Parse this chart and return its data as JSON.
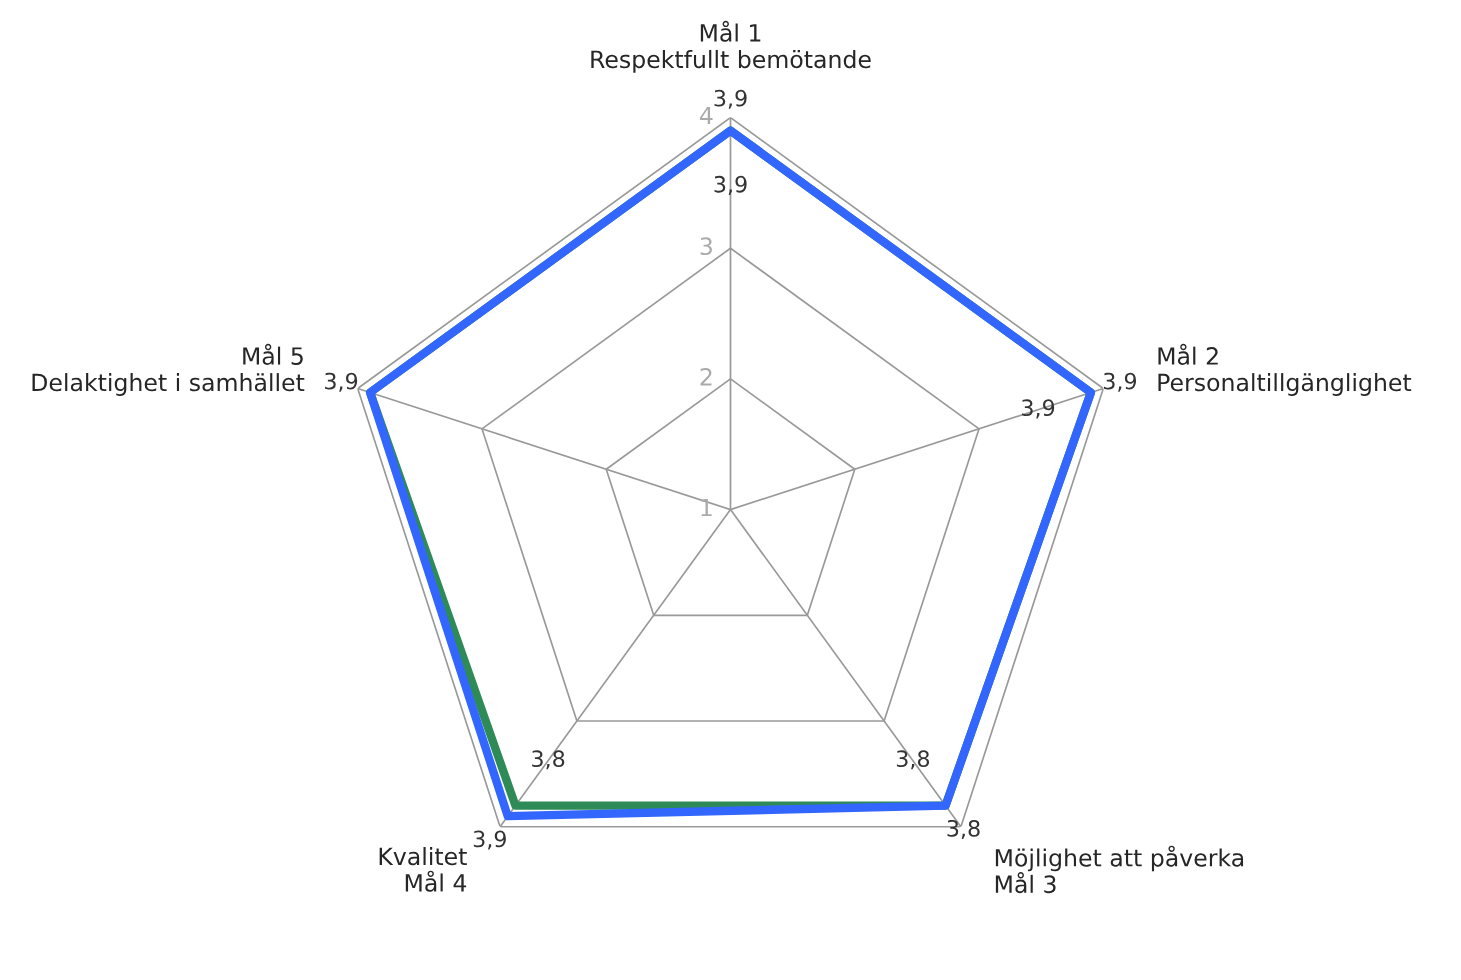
{
  "chart_data": {
    "type": "radar",
    "categories": [
      "Mål 1\nRespektfullt bemötande",
      "Mål 2\nPersonaltillgänglighet",
      "Möjlighet att påverka\nMål 3",
      "Kvalitet\nMål 4",
      "Mål 5\nDelaktighet i samhället"
    ],
    "series": [
      {
        "color": "#2e8b57",
        "values": [
          3.9,
          3.9,
          3.8,
          3.8,
          3.9
        ],
        "value_labels": [
          "3,9",
          "3,9",
          "3,8",
          "3,8",
          null
        ]
      },
      {
        "color": "#3366ff",
        "values": [
          3.9,
          3.9,
          3.8,
          3.9,
          3.9
        ],
        "value_labels": [
          "3,9",
          "3,9",
          "3,8",
          "3,9",
          "3,9"
        ]
      }
    ],
    "ylim": [
      1,
      4
    ],
    "yticks": [
      1,
      2,
      3,
      4
    ],
    "grid": true
  }
}
